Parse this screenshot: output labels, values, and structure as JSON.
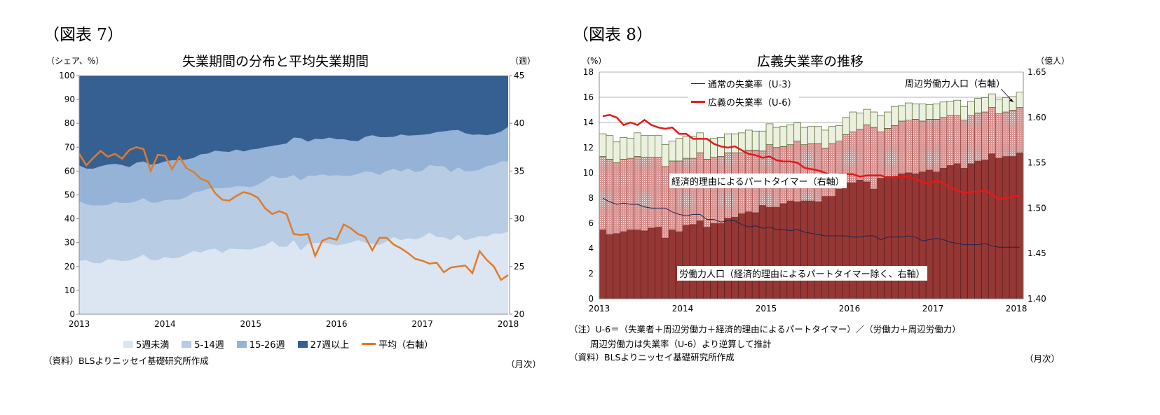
{
  "figure7": {
    "label": "（図表 7）",
    "source": "（資料）BLSよりニッセイ基礎研究所作成",
    "period_note": "（月次）"
  },
  "figure8": {
    "label": "（図表 8）",
    "note1": "（注）U-6＝（失業者＋周辺労働力＋経済的理由によるパートタイマー）／（労働力＋周辺労働力）",
    "note2": "周辺労働力は失業率（U-6）より逆算して推計",
    "source": "（資料）BLSよりニッセイ基礎研究所作成",
    "period_note": "（月次）"
  },
  "chart_data": [
    {
      "type": "area",
      "stacked": true,
      "title": "失業期間の分布と平均失業期間",
      "ylabel": "（シェア、%）",
      "ylabel_right": "（週）",
      "ylim": [
        0,
        100
      ],
      "ylim_right": [
        20,
        45
      ],
      "yticks": [
        0,
        10,
        20,
        30,
        40,
        50,
        60,
        70,
        80,
        90,
        100
      ],
      "yticks_right": [
        20,
        25,
        30,
        35,
        40,
        45
      ],
      "xticks": [
        "2013",
        "2014",
        "2015",
        "2016",
        "2017",
        "2018"
      ],
      "x_start": "2013-01",
      "x_end": "2018-01",
      "frequency": "monthly",
      "legend_position": "bottom",
      "grid": false,
      "series": [
        {
          "name": "5週未満",
          "color": "#dce6f2",
          "values": [
            22.3,
            22.6,
            21.4,
            21.3,
            23,
            22.8,
            22.2,
            22.5,
            23.5,
            25,
            22.7,
            22.6,
            24,
            23.3,
            23.7,
            25,
            26.5,
            25.8,
            27,
            27.5,
            25.7,
            27.5,
            27.3,
            27.2,
            27.1,
            28,
            28.8,
            30.7,
            28.3,
            28.2,
            31,
            26.6,
            29.6,
            29.8,
            30,
            29.6,
            28.8,
            29.3,
            30,
            31,
            30,
            29.5,
            29,
            30.5,
            32.3,
            31,
            31.8,
            31.3,
            32.3,
            34.2,
            32.4,
            32.2,
            31,
            33.3,
            30.9,
            31.8,
            32.7,
            32.5,
            33.8,
            33.7,
            34.5
          ]
        },
        {
          "name": "5-14週",
          "color": "#b8cce4",
          "values": [
            25.0,
            23.4,
            24.1,
            24.3,
            22.7,
            24.2,
            24.4,
            24.1,
            23.8,
            23.6,
            24.0,
            24.2,
            23.8,
            24.7,
            24.3,
            24.0,
            24.5,
            25.7,
            25.5,
            25.3,
            27.1,
            25.5,
            26.3,
            26.3,
            26.1,
            26.2,
            27.2,
            27.3,
            28.7,
            29.0,
            27.3,
            29.4,
            28.4,
            28.2,
            28.5,
            28.4,
            29.4,
            28.7,
            28.0,
            27.8,
            29.8,
            30.0,
            29.3,
            29.5,
            28.5,
            28.8,
            29.2,
            28.2,
            27.7,
            28.3,
            29.6,
            29.8,
            28.5,
            28.2,
            28.8,
            28.2,
            27.8,
            29.5,
            28.7,
            30.3,
            29.5
          ]
        },
        {
          "name": "15-26週",
          "color": "#95b3d7",
          "values": [
            15.0,
            15.0,
            15.5,
            16.4,
            17.0,
            16.0,
            15.9,
            15.0,
            16.2,
            15.4,
            15.9,
            16.2,
            16.2,
            16.5,
            16.5,
            15.8,
            14.5,
            15.5,
            14.8,
            15.7,
            15.4,
            15.0,
            15.4,
            14.7,
            15.8,
            15.1,
            14.0,
            12.5,
            14.0,
            14.3,
            15.7,
            17.8,
            14.3,
            15.5,
            14.8,
            16.0,
            15.1,
            15.3,
            14.7,
            13.7,
            14.5,
            15.5,
            15.9,
            14.2,
            13.5,
            15.5,
            13.8,
            15.5,
            15.2,
            13.0,
            14.3,
            14.6,
            17.5,
            15.7,
            16.1,
            15.2,
            14.8,
            13.0,
            13.0,
            12.5,
            14.5
          ]
        },
        {
          "name": "27週以上",
          "color": "#366092",
          "values": [
            37.7,
            39,
            39,
            38,
            37.3,
            37,
            37.5,
            38.4,
            36.5,
            36,
            37.4,
            37,
            36,
            35.5,
            35.5,
            35.2,
            34.5,
            33,
            32.7,
            31.5,
            31.8,
            32,
            31,
            31.8,
            31,
            30.7,
            30,
            29.5,
            29,
            28.5,
            26,
            26.2,
            27.7,
            26.5,
            26.7,
            26,
            26.7,
            26.7,
            27.3,
            27.5,
            25.7,
            25,
            25.8,
            25.8,
            25.7,
            24.7,
            25.2,
            25,
            24.8,
            24.5,
            23.7,
            23.4,
            23,
            22.8,
            24.2,
            24.8,
            24.7,
            25,
            24.5,
            23.5,
            21.5
          ]
        },
        {
          "name": "平均（右軸）",
          "type": "line",
          "axis": "right",
          "color": "#e07b2a",
          "values": [
            36.8,
            35.6,
            36.4,
            37.1,
            36.5,
            36.8,
            36.3,
            37.2,
            37.5,
            37.3,
            35.0,
            36.7,
            36.6,
            35.2,
            36.5,
            35.3,
            34.9,
            34.2,
            33.9,
            32.7,
            32.0,
            31.9,
            32.4,
            32.8,
            32.6,
            32.2,
            31.1,
            30.5,
            30.8,
            30.5,
            28.4,
            28.3,
            28.4,
            26.1,
            27.7,
            28.0,
            27.8,
            29.4,
            29.0,
            28.4,
            28.1,
            26.7,
            28.0,
            28.0,
            27.3,
            26.9,
            26.4,
            25.8,
            25.6,
            25.3,
            25.4,
            24.4,
            24.9,
            25.0,
            25.1,
            24.3,
            26.6,
            25.7,
            25.0,
            23.6,
            24.1
          ]
        }
      ]
    },
    {
      "type": "bar",
      "stacked": true,
      "title": "広義失業率の推移",
      "ylabel": "（%）",
      "ylabel_right": "（億人）",
      "ylim": [
        0,
        18
      ],
      "ylim_right": [
        1.4,
        1.65
      ],
      "yticks": [
        0,
        2,
        4,
        6,
        8,
        10,
        12,
        14,
        16,
        18
      ],
      "yticks_right": [
        "1.40",
        "1.45",
        "1.50",
        "1.55",
        "1.60",
        "1.65"
      ],
      "xticks": [
        "2013",
        "2014",
        "2015",
        "2016",
        "2017",
        "2018"
      ],
      "x_start": "2013-01",
      "x_end": "2018-01",
      "frequency": "monthly",
      "legend_position": "top-left",
      "grid": "horizontal",
      "bar_series": [
        {
          "name": "労働力人口（経済的理由によるパートタイマー除く、右軸）",
          "axis": "right",
          "color": "#953735",
          "values": [
            1.476,
            1.471,
            1.472,
            1.474,
            1.476,
            1.476,
            1.475,
            1.478,
            1.479,
            1.467,
            1.476,
            1.474,
            1.481,
            1.482,
            1.486,
            1.479,
            1.483,
            1.483,
            1.489,
            1.49,
            1.494,
            1.496,
            1.495,
            1.503,
            1.501,
            1.501,
            1.505,
            1.508,
            1.507,
            1.508,
            1.508,
            1.507,
            1.513,
            1.513,
            1.521,
            1.528,
            1.528,
            1.531,
            1.529,
            1.521,
            1.533,
            1.535,
            1.535,
            1.538,
            1.539,
            1.538,
            1.54,
            1.542,
            1.54,
            1.544,
            1.547,
            1.549,
            1.544,
            1.549,
            1.552,
            1.553,
            1.56,
            1.555,
            1.557,
            1.557,
            1.561
          ]
        },
        {
          "name": "経済的理由によるパートタイマー（右軸）",
          "axis": "right",
          "color": "#e6b9b8",
          "values": [
            0.081,
            0.083,
            0.078,
            0.08,
            0.079,
            0.081,
            0.081,
            0.078,
            0.077,
            0.079,
            0.076,
            0.078,
            0.074,
            0.073,
            0.075,
            0.075,
            0.073,
            0.074,
            0.072,
            0.071,
            0.067,
            0.068,
            0.069,
            0.06,
            0.069,
            0.066,
            0.063,
            0.062,
            0.067,
            0.062,
            0.063,
            0.064,
            0.053,
            0.058,
            0.053,
            0.053,
            0.056,
            0.056,
            0.063,
            0.068,
            0.051,
            0.053,
            0.056,
            0.058,
            0.058,
            0.06,
            0.056,
            0.056,
            0.058,
            0.056,
            0.055,
            0.053,
            0.053,
            0.053,
            0.053,
            0.053,
            0.051,
            0.049,
            0.049,
            0.051,
            0.05
          ]
        },
        {
          "name": "周辺労働力人口（右軸）",
          "axis": "right",
          "color": "#ebf1de",
          "values": [
            0.025,
            0.026,
            0.023,
            0.024,
            0.022,
            0.026,
            0.024,
            0.024,
            0.024,
            0.024,
            0.022,
            0.025,
            0.024,
            0.024,
            0.022,
            0.022,
            0.021,
            0.021,
            0.021,
            0.021,
            0.022,
            0.022,
            0.021,
            0.022,
            0.023,
            0.022,
            0.022,
            0.022,
            0.02,
            0.019,
            0.019,
            0.019,
            0.02,
            0.019,
            0.017,
            0.019,
            0.022,
            0.018,
            0.017,
            0.017,
            0.018,
            0.018,
            0.021,
            0.017,
            0.019,
            0.017,
            0.019,
            0.016,
            0.017,
            0.017,
            0.016,
            0.017,
            0.015,
            0.016,
            0.016,
            0.016,
            0.015,
            0.016,
            0.016,
            0.015,
            0.017
          ]
        }
      ],
      "line_series": [
        {
          "name": "通常の失業率（U-3）",
          "axis": "left",
          "color": "#1f2350",
          "values": [
            8.0,
            7.7,
            7.5,
            7.6,
            7.5,
            7.5,
            7.3,
            7.2,
            7.2,
            7.2,
            6.9,
            6.7,
            6.6,
            6.7,
            6.7,
            6.3,
            6.3,
            6.1,
            6.2,
            6.2,
            5.9,
            5.7,
            5.8,
            5.6,
            5.7,
            5.5,
            5.5,
            5.4,
            5.5,
            5.3,
            5.2,
            5.1,
            5.0,
            5.0,
            5.0,
            5.0,
            4.9,
            4.9,
            5.0,
            5.0,
            4.7,
            4.9,
            4.9,
            4.9,
            5.0,
            4.9,
            4.6,
            4.7,
            4.8,
            4.7,
            4.5,
            4.4,
            4.3,
            4.3,
            4.3,
            4.4,
            4.2,
            4.1,
            4.1,
            4.1,
            4.1
          ]
        },
        {
          "name": "広義の失業率（U-6）",
          "axis": "left",
          "color": "#e41a1a",
          "values": [
            14.5,
            14.6,
            14.4,
            13.8,
            14.0,
            13.8,
            14.2,
            13.8,
            13.6,
            13.5,
            13.6,
            13.1,
            13.1,
            12.7,
            12.7,
            12.7,
            12.3,
            12.1,
            12.0,
            12.1,
            11.8,
            11.5,
            11.4,
            11.2,
            11.3,
            11.0,
            10.9,
            10.9,
            10.8,
            10.4,
            10.3,
            10.2,
            10.0,
            9.8,
            9.9,
            9.9,
            9.9,
            9.7,
            9.8,
            9.8,
            9.8,
            9.6,
            9.7,
            9.7,
            9.7,
            9.5,
            9.3,
            9.1,
            9.4,
            9.2,
            8.8,
            8.6,
            8.4,
            8.5,
            8.5,
            8.6,
            8.3,
            7.9,
            8.0,
            8.1,
            8.2
          ]
        }
      ]
    }
  ]
}
